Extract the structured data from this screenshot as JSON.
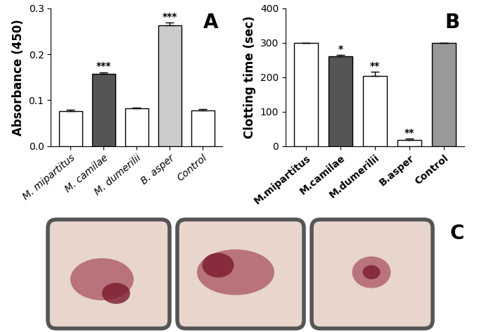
{
  "chart_data": [
    {
      "type": "bar",
      "panel_label": "A",
      "y_label": "Absorbance (450)",
      "categories": [
        "M. mipartitus",
        "M. camilae",
        "M. dumerilii",
        "B. asper",
        "Control"
      ],
      "values": [
        0.076,
        0.158,
        0.082,
        0.263,
        0.078
      ],
      "errors": [
        0.003,
        0.003,
        0.002,
        0.006,
        0.003
      ],
      "annotations": [
        null,
        "***",
        null,
        "***",
        null
      ],
      "colors": [
        "#ffffff",
        "#555555",
        "#ffffff",
        "#cccccc",
        "#ffffff"
      ],
      "ylim": [
        0.0,
        0.3
      ],
      "yticks": [
        0.0,
        0.1,
        0.2,
        0.3
      ]
    },
    {
      "type": "bar",
      "panel_label": "B",
      "y_label": "Clotting time (sec)",
      "categories": [
        "M.mipartitus",
        "M.camilae",
        "M.dumerilii",
        "B.asper",
        "Control"
      ],
      "values": [
        300,
        260,
        203,
        18,
        300
      ],
      "errors": [
        0,
        5,
        12,
        3,
        0
      ],
      "annotations": [
        null,
        "*",
        "**",
        "**",
        null
      ],
      "colors": [
        "#ffffff",
        "#555555",
        "#ffffff",
        "#ffffff",
        "#999999"
      ],
      "ylim": [
        0,
        400
      ],
      "yticks": [
        0,
        100,
        200,
        300,
        400
      ]
    }
  ],
  "photo_panel": {
    "panel_label": "C"
  }
}
